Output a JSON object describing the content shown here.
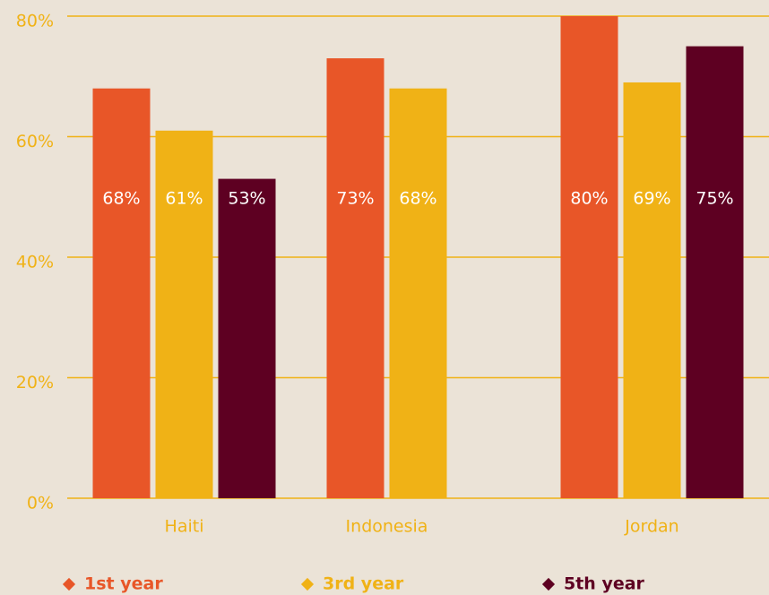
{
  "chart_data": {
    "type": "bar",
    "categories": [
      "Haiti",
      "Indonesia",
      "Jordan"
    ],
    "series": [
      {
        "name": "1st year",
        "color": "#e85628",
        "values": [
          68,
          73,
          80
        ],
        "value_labels": [
          "68%",
          "73%",
          "80%"
        ]
      },
      {
        "name": "3rd year",
        "color": "#f0b216",
        "values": [
          61,
          68,
          69
        ],
        "value_labels": [
          "61%",
          "68%",
          "69%"
        ]
      },
      {
        "name": "5th year",
        "color": "#5e0022",
        "values": [
          53,
          null,
          75
        ],
        "value_labels": [
          "53%",
          null,
          "75%"
        ]
      }
    ],
    "ylim": [
      0,
      80
    ],
    "yticks": [
      {
        "value": 0,
        "label": "0%"
      },
      {
        "value": 20,
        "label": "20%"
      },
      {
        "value": 40,
        "label": "40%"
      },
      {
        "value": 60,
        "label": "60%"
      },
      {
        "value": 80,
        "label": "80%"
      }
    ],
    "grid": true,
    "legend": "bottom"
  }
}
